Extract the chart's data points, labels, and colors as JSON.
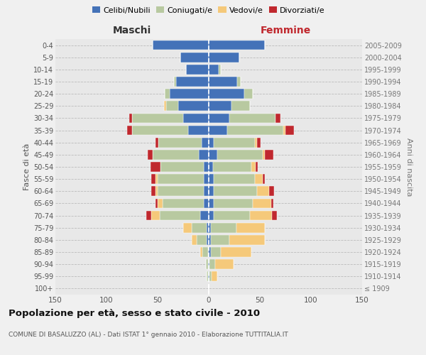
{
  "age_groups": [
    "100+",
    "95-99",
    "90-94",
    "85-89",
    "80-84",
    "75-79",
    "70-74",
    "65-69",
    "60-64",
    "55-59",
    "50-54",
    "45-49",
    "40-44",
    "35-39",
    "30-34",
    "25-29",
    "20-24",
    "15-19",
    "10-14",
    "5-9",
    "0-4"
  ],
  "birth_years": [
    "≤ 1909",
    "1910-1914",
    "1915-1919",
    "1920-1924",
    "1925-1929",
    "1930-1934",
    "1935-1939",
    "1940-1944",
    "1945-1949",
    "1950-1954",
    "1955-1959",
    "1960-1964",
    "1965-1969",
    "1970-1974",
    "1975-1979",
    "1980-1984",
    "1985-1989",
    "1990-1994",
    "1995-1999",
    "2000-2004",
    "2005-2009"
  ],
  "male": {
    "celibi": [
      0,
      1,
      1,
      1,
      2,
      2,
      8,
      5,
      5,
      5,
      5,
      10,
      7,
      20,
      25,
      30,
      38,
      32,
      22,
      28,
      55
    ],
    "coniugati": [
      0,
      1,
      2,
      5,
      10,
      15,
      40,
      40,
      45,
      45,
      42,
      45,
      42,
      55,
      50,
      12,
      5,
      2,
      0,
      0,
      0
    ],
    "vedovi": [
      0,
      0,
      0,
      2,
      5,
      8,
      8,
      5,
      2,
      2,
      0,
      0,
      0,
      0,
      0,
      2,
      0,
      0,
      0,
      0,
      0
    ],
    "divorziati": [
      0,
      0,
      0,
      0,
      0,
      0,
      5,
      2,
      4,
      4,
      10,
      5,
      3,
      5,
      3,
      0,
      0,
      0,
      0,
      0,
      0
    ]
  },
  "female": {
    "nubili": [
      0,
      1,
      1,
      2,
      2,
      2,
      5,
      5,
      5,
      5,
      4,
      8,
      5,
      18,
      20,
      22,
      35,
      28,
      10,
      30,
      55
    ],
    "coniugate": [
      0,
      2,
      5,
      10,
      18,
      25,
      35,
      38,
      42,
      40,
      38,
      45,
      40,
      55,
      45,
      18,
      8,
      3,
      2,
      0,
      0
    ],
    "vedove": [
      0,
      5,
      18,
      30,
      35,
      28,
      22,
      18,
      12,
      8,
      4,
      2,
      2,
      2,
      0,
      0,
      0,
      0,
      0,
      0,
      0
    ],
    "divorziate": [
      0,
      0,
      0,
      0,
      0,
      0,
      5,
      2,
      5,
      2,
      2,
      8,
      4,
      8,
      5,
      0,
      0,
      0,
      0,
      0,
      0
    ]
  },
  "colors": {
    "celibi": "#4472b8",
    "coniugati": "#b8c9a0",
    "vedovi": "#f5c97a",
    "divorziati": "#c0282e"
  },
  "xlim": 150,
  "title": "Popolazione per età, sesso e stato civile - 2010",
  "subtitle": "COMUNE DI BASALUZZO (AL) - Dati ISTAT 1° gennaio 2010 - Elaborazione TUTTITALIA.IT",
  "ylabel_left": "Fasce di età",
  "ylabel_right": "Anni di nascita",
  "xlabel_left": "Maschi",
  "xlabel_right": "Femmine",
  "bg_color": "#f0f0f0",
  "plot_bg": "#e8e8e8",
  "legend_labels": [
    "Celibi/Nubili",
    "Coniugati/e",
    "Vedovi/e",
    "Divorziati/e"
  ]
}
